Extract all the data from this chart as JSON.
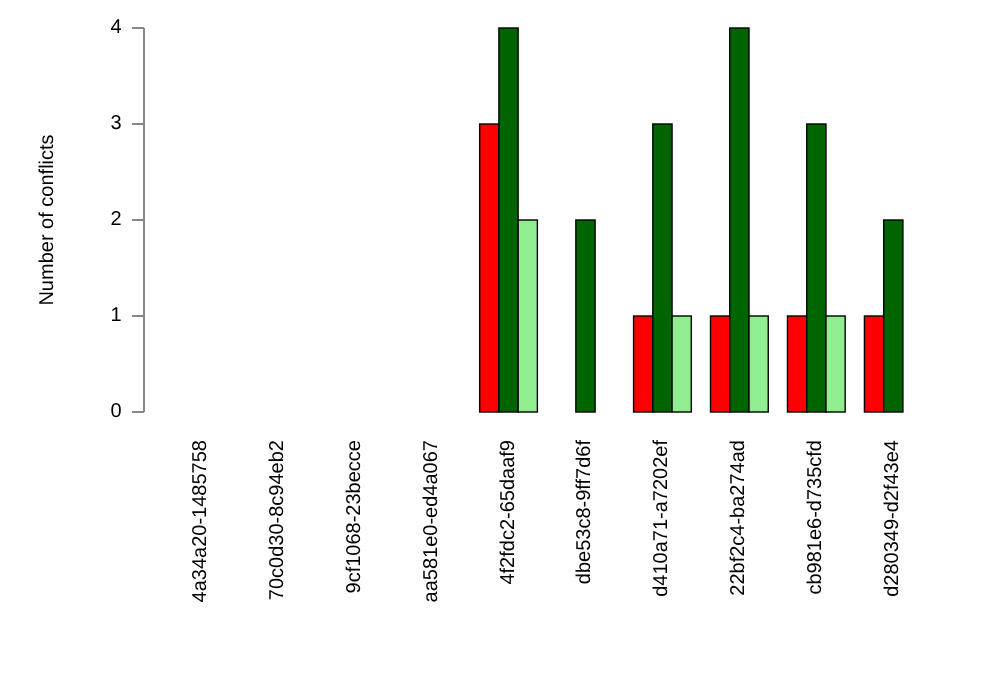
{
  "chart_data": {
    "type": "bar",
    "ylabel": "Number of conflicts",
    "categories": [
      "4a34a20-1485758",
      "70c0d30-8c94eb2",
      "9cf1068-23becce",
      "aa581e0-ed4a067",
      "4f2fdc2-65daaf9",
      "dbe53c8-9ff7d6f",
      "d410a71-a7202ef",
      "22bf2c4-ba274ad",
      "cb981e6-d735cfd",
      "d280349-d2f43e4"
    ],
    "series": [
      {
        "color": "#ff0000",
        "values": [
          0,
          0,
          0,
          0,
          3,
          0,
          1,
          1,
          1,
          1
        ]
      },
      {
        "color": "#006400",
        "values": [
          0,
          0,
          0,
          0,
          4,
          2,
          3,
          4,
          3,
          2
        ]
      },
      {
        "color": "#90ee90",
        "values": [
          0,
          0,
          0,
          0,
          2,
          0,
          1,
          1,
          1,
          0
        ]
      }
    ],
    "ylim": [
      0,
      4
    ],
    "yticks": [
      0,
      1,
      2,
      3,
      4
    ],
    "grid": false
  }
}
